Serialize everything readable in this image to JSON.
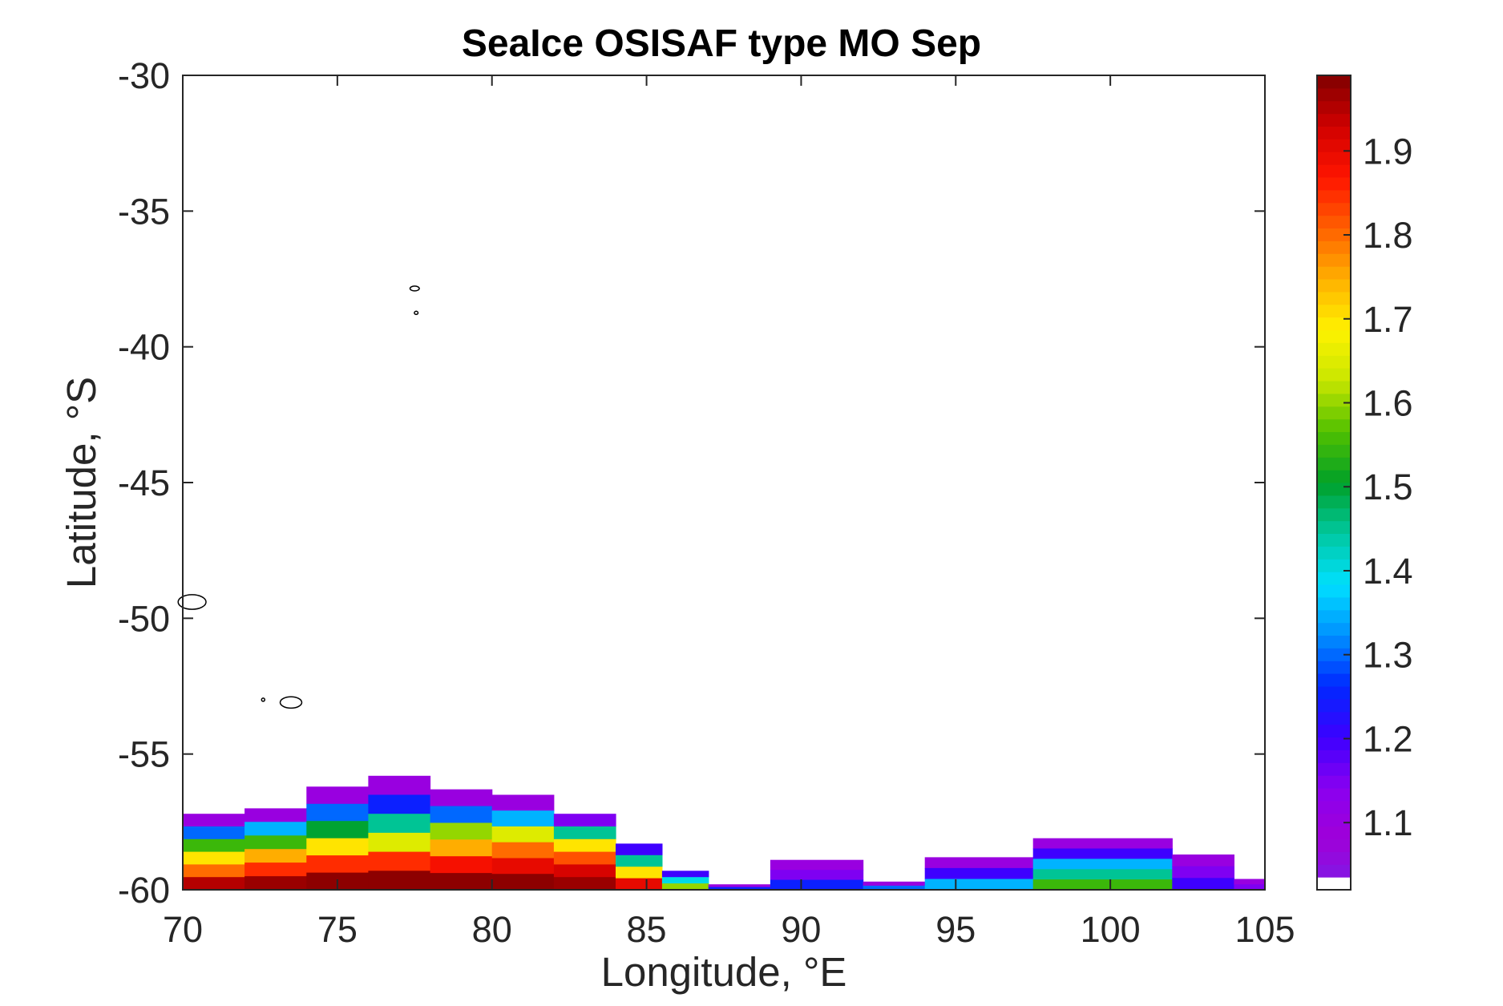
{
  "chart_data": {
    "type": "heatmap",
    "title": "SeaIce OSISAF type MO Sep",
    "xlabel": "Longitude, °E",
    "ylabel": "Latitude, °S",
    "xlim": [
      70,
      105
    ],
    "ylim": [
      -60,
      -30
    ],
    "xticks": [
      "70",
      "75",
      "80",
      "85",
      "90",
      "95",
      "100",
      "105"
    ],
    "yticks": [
      "-30",
      "-35",
      "-40",
      "-45",
      "-50",
      "-55",
      "-60"
    ],
    "colorbar": {
      "range": [
        1.02,
        1.99
      ],
      "ticks": [
        "1.1",
        "1.2",
        "1.3",
        "1.4",
        "1.5",
        "1.6",
        "1.7",
        "1.8",
        "1.9"
      ],
      "colormap": [
        "#ffffff",
        "#7a1ee8",
        "#a000d8",
        "#8a00f0",
        "#3c00ff",
        "#0028ff",
        "#0090ff",
        "#00e0ff",
        "#00c8a0",
        "#00a028",
        "#50c000",
        "#c8e600",
        "#fff200",
        "#ffb000",
        "#ff6000",
        "#ff1400",
        "#d00000",
        "#800000"
      ]
    },
    "regions": [
      {
        "lon": [
          70,
          72
        ],
        "lat_from": -60,
        "lat_to": -57.2,
        "profile": [
          1.1,
          1.3,
          1.55,
          1.7,
          1.8,
          1.95
        ]
      },
      {
        "lon": [
          72,
          74
        ],
        "lat_from": -60,
        "lat_to": -57.0,
        "profile": [
          1.1,
          1.35,
          1.55,
          1.75,
          1.85,
          1.97
        ]
      },
      {
        "lon": [
          74,
          76
        ],
        "lat_from": -60,
        "lat_to": -56.2,
        "profile": [
          1.1,
          1.3,
          1.5,
          1.7,
          1.85,
          1.98
        ]
      },
      {
        "lon": [
          76,
          78
        ],
        "lat_from": -60,
        "lat_to": -55.8,
        "profile": [
          1.1,
          1.25,
          1.45,
          1.65,
          1.85,
          1.98
        ]
      },
      {
        "lon": [
          78,
          80
        ],
        "lat_from": -60,
        "lat_to": -56.3,
        "profile": [
          1.1,
          1.3,
          1.6,
          1.75,
          1.88,
          1.98
        ]
      },
      {
        "lon": [
          80,
          82
        ],
        "lat_from": -60,
        "lat_to": -56.5,
        "profile": [
          1.1,
          1.35,
          1.65,
          1.8,
          1.9,
          1.98
        ]
      },
      {
        "lon": [
          82,
          84
        ],
        "lat_from": -60,
        "lat_to": -57.2,
        "profile": [
          1.15,
          1.45,
          1.7,
          1.82,
          1.92,
          1.97
        ]
      },
      {
        "lon": [
          84,
          85.5
        ],
        "lat_from": -60,
        "lat_to": -58.3,
        "profile": [
          1.2,
          1.45,
          1.7,
          1.9
        ]
      },
      {
        "lon": [
          85.5,
          87
        ],
        "lat_from": -60,
        "lat_to": -59.3,
        "profile": [
          1.2,
          1.4,
          1.6
        ]
      },
      {
        "lon": [
          87,
          89
        ],
        "lat_from": -60,
        "lat_to": -59.8,
        "profile": [
          1.1,
          1.25
        ]
      },
      {
        "lon": [
          89,
          92
        ],
        "lat_from": -60,
        "lat_to": -58.9,
        "profile": [
          1.1,
          1.15,
          1.25
        ]
      },
      {
        "lon": [
          92,
          94
        ],
        "lat_from": -60,
        "lat_to": -59.7,
        "profile": [
          1.1,
          1.3
        ]
      },
      {
        "lon": [
          94,
          97.5
        ],
        "lat_from": -60,
        "lat_to": -58.8,
        "profile": [
          1.1,
          1.2,
          1.35
        ]
      },
      {
        "lon": [
          97.5,
          102
        ],
        "lat_from": -60,
        "lat_to": -58.1,
        "profile": [
          1.1,
          1.2,
          1.35,
          1.45,
          1.55
        ]
      },
      {
        "lon": [
          102,
          104
        ],
        "lat_from": -60,
        "lat_to": -58.7,
        "profile": [
          1.1,
          1.15,
          1.2
        ]
      },
      {
        "lon": [
          104,
          105
        ],
        "lat_from": -60,
        "lat_to": -59.6,
        "profile": [
          1.1,
          1.15
        ]
      }
    ],
    "islands": [
      {
        "lon": 77.5,
        "lat": -37.85,
        "size": 0.15
      },
      {
        "lon": 77.55,
        "lat": -38.75,
        "size": 0.06
      },
      {
        "lon": 70.3,
        "lat": -49.4,
        "size": 0.45
      },
      {
        "lon": 73.5,
        "lat": -53.1,
        "size": 0.35
      },
      {
        "lon": 72.6,
        "lat": -53.0,
        "size": 0.05
      }
    ]
  }
}
